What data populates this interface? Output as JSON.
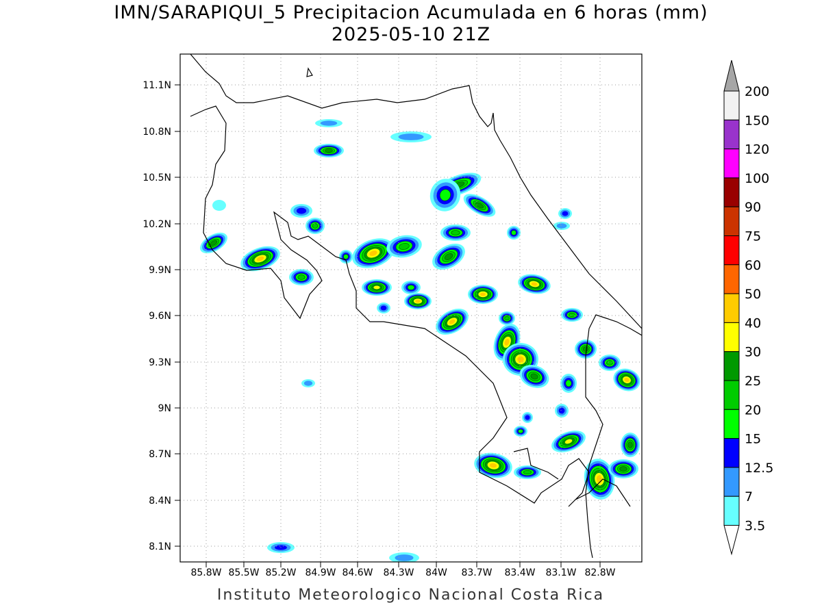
{
  "title": "IMN/SARAPIQUI_5 Precipitacion Acumulada en 6 horas (mm)",
  "subtitle": "2025-05-10 21Z",
  "footer": "Instituto Meteorologico Nacional Costa Rica",
  "map": {
    "lon_range": [
      -86.0,
      -82.6
    ],
    "lat_range": [
      8.0,
      11.3
    ],
    "lon_ticks": [
      "85.8W",
      "85.5W",
      "85.2W",
      "84.9W",
      "84.6W",
      "84.3W",
      "84W",
      "83.7W",
      "83.4W",
      "83.1W",
      "82.8W"
    ],
    "lat_ticks": [
      "11.1N",
      "10.8N",
      "10.5N",
      "10.2N",
      "9.9N",
      "9.6N",
      "9.3N",
      "9N",
      "8.7N",
      "8.4N",
      "8.1N"
    ],
    "grid": "dotted"
  },
  "colorbar": {
    "labels": [
      "200",
      "150",
      "120",
      "100",
      "90",
      "75",
      "60",
      "50",
      "40",
      "30",
      "25",
      "20",
      "15",
      "12.5",
      "7",
      "3.5"
    ],
    "colors": [
      "#f2f2f2",
      "#9933cc",
      "#ff00ff",
      "#990000",
      "#cc3300",
      "#ff0000",
      "#ff6600",
      "#ffcc00",
      "#ffff00",
      "#009900",
      "#00cc00",
      "#00ff00",
      "#0000ff",
      "#3399ff",
      "#66ffff"
    ],
    "over_color": "#a6a6a6"
  },
  "legend_colors": {
    "c3_5": "#66ffff",
    "c7": "#3399ff",
    "c12_5": "#0000ff",
    "c15": "#00ff00",
    "c20": "#00cc00",
    "c25": "#009900",
    "c30": "#ffff00",
    "c40": "#ffcc00",
    "c60": "#ff0000"
  }
}
